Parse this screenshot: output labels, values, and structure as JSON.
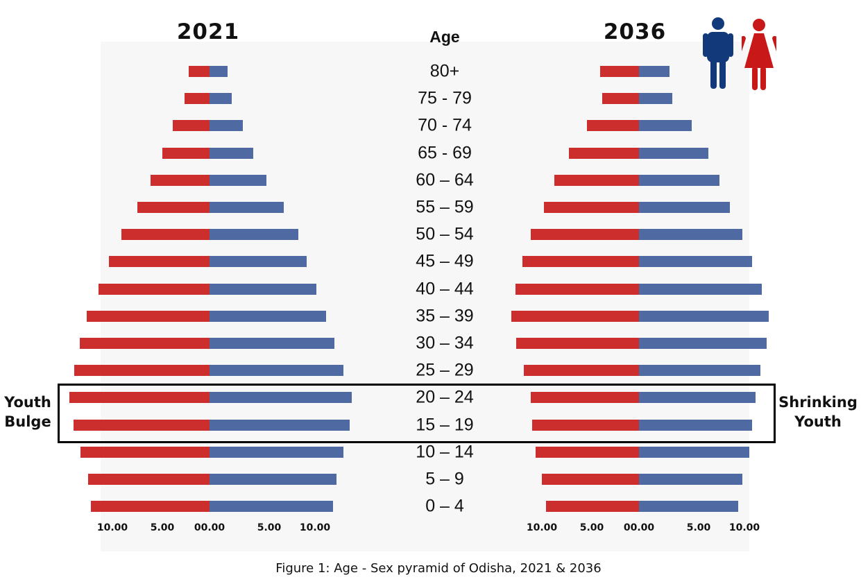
{
  "colors": {
    "female": "#cc2e2e",
    "male": "#4f6aa3",
    "male_icon": "#123a7a",
    "female_icon": "#c81818"
  },
  "legend_icons": [
    "male-person-icon",
    "female-person-icon"
  ],
  "annotations": {
    "left_note": [
      "Youth",
      "Bulge"
    ],
    "right_note": [
      "Shrinking",
      "Youth"
    ]
  },
  "caption": "Figure 1: Age - Sex pyramid of Odisha, 2021 & 2036",
  "age_header": "Age",
  "chart_data": [
    {
      "type": "bar",
      "orientation": "horizontal-population-pyramid",
      "title": "2021",
      "categories": [
        "80+",
        "75 - 79",
        "70 - 74",
        "65 - 69",
        "60 – 64",
        "55 – 59",
        "50 – 54",
        "45 – 49",
        "40 – 44",
        "35 – 39",
        "30 – 34",
        "25 – 29",
        "20 – 24",
        "15 – 19",
        "10 – 14",
        "5 – 9",
        "0 – 4"
      ],
      "tick_labels": [
        "10.00",
        "5.00",
        "00.00",
        "5.00",
        "10.00"
      ],
      "xlim": [
        -14,
        14
      ],
      "series": [
        {
          "color": "#cc2e2e",
          "values": [
            2.0,
            2.4,
            3.5,
            4.5,
            5.6,
            6.9,
            8.4,
            9.6,
            10.6,
            11.7,
            12.4,
            12.9,
            13.4,
            13.0,
            12.3,
            11.6,
            11.3
          ]
        },
        {
          "color": "#4f6aa3",
          "values": [
            1.7,
            2.1,
            3.2,
            4.2,
            5.4,
            7.1,
            8.5,
            9.3,
            10.2,
            11.1,
            11.9,
            12.8,
            13.6,
            13.4,
            12.8,
            12.1,
            11.8
          ]
        }
      ]
    },
    {
      "type": "bar",
      "orientation": "horizontal-population-pyramid",
      "title": "2036",
      "categories": [
        "80+",
        "75 - 79",
        "70 - 74",
        "65 - 69",
        "60 – 64",
        "55 – 59",
        "50 – 54",
        "45 – 49",
        "40 – 44",
        "35 – 39",
        "30 – 34",
        "25 – 29",
        "20 – 24",
        "15 – 19",
        "10 – 14",
        "5 – 9",
        "0 – 4"
      ],
      "tick_labels": [
        "10.00",
        "5.00",
        "00.00",
        "5.00",
        "10.00"
      ],
      "xlim": [
        -14,
        14
      ],
      "series": [
        {
          "color": "#cc2e2e",
          "values": [
            3.7,
            3.5,
            5.0,
            6.7,
            8.1,
            9.1,
            10.3,
            11.1,
            11.8,
            12.2,
            11.7,
            11.0,
            10.3,
            10.2,
            9.9,
            9.3,
            8.9
          ]
        },
        {
          "color": "#4f6aa3",
          "values": [
            2.9,
            3.2,
            5.0,
            6.6,
            7.7,
            8.7,
            9.9,
            10.8,
            11.7,
            12.4,
            12.2,
            11.6,
            11.1,
            10.8,
            10.5,
            9.9,
            9.5
          ]
        }
      ]
    }
  ]
}
